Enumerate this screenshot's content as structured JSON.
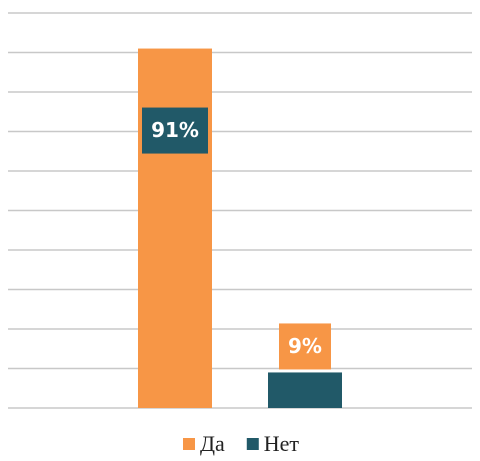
{
  "chart_data": {
    "type": "bar",
    "categories": [
      null
    ],
    "series": [
      {
        "name": "Да",
        "color": "#f79646",
        "values": [
          91
        ],
        "value_labels": [
          "91%"
        ]
      },
      {
        "name": "Нет",
        "color": "#215968",
        "values": [
          9
        ],
        "value_labels": [
          "9%"
        ]
      }
    ],
    "ylim": [
      0,
      100
    ],
    "yticks": [
      0,
      10,
      20,
      30,
      40,
      50,
      60,
      70,
      80,
      90,
      100
    ],
    "grid": true,
    "legend": "bottom"
  }
}
